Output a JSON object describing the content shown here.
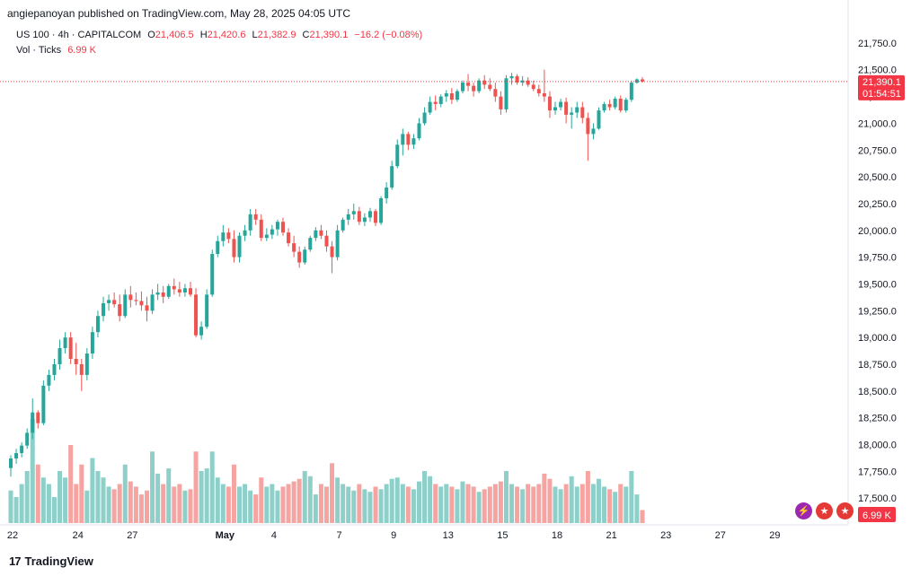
{
  "publisher_line": "angiepanoyan published on TradingView.com, May 28, 2025 04:05 UTC",
  "legend": {
    "symbol": "US 100 · 4h · CAPITALCOM",
    "open_label": "O",
    "open": "21,406.5",
    "high_label": "H",
    "high": "21,420.6",
    "low_label": "L",
    "low": "21,382.9",
    "close_label": "C",
    "close": "21,390.1",
    "change": "−16.2 (−0.08%)",
    "vol_label": "Vol · Ticks",
    "vol_value": "6.99 K"
  },
  "price_badge": {
    "price": "21,390.1",
    "countdown": "01:54:51"
  },
  "volume_badge": "6.99 K",
  "brand": {
    "logo": "17",
    "name": "TradingView"
  },
  "colors": {
    "up": "#26a69a",
    "down": "#ef5350",
    "vol_up": "#8ed0c9",
    "vol_down": "#f5a4a2",
    "last_price_line": "#f23645"
  },
  "icons": [
    "flash-icon",
    "us-flag-icon",
    "us-flag-icon"
  ],
  "chart_data": {
    "type": "candlestick",
    "symbol": "US 100",
    "timeframe": "4h",
    "ylim": [
      17250,
      21900
    ],
    "y_ticks": [
      "21,750.0",
      "21,500.0",
      "21,250.0",
      "21,000.0",
      "20,750.0",
      "20,500.0",
      "20,250.0",
      "20,000.0",
      "19,750.0",
      "19,500.0",
      "19,250.0",
      "19,000.0",
      "18,750.0",
      "18,500.0",
      "18,250.0",
      "18,000.0",
      "17,750.0",
      "17,500.0"
    ],
    "y_tick_values": [
      21750,
      21500,
      21250,
      21000,
      20750,
      20500,
      20250,
      20000,
      19750,
      19500,
      19250,
      19000,
      18750,
      18500,
      18250,
      18000,
      17750,
      17500
    ],
    "x_ticks": [
      {
        "label": "22",
        "bold": false
      },
      {
        "label": "24",
        "bold": false
      },
      {
        "label": "27",
        "bold": false
      },
      {
        "label": "May",
        "bold": true
      },
      {
        "label": "4",
        "bold": false
      },
      {
        "label": "7",
        "bold": false
      },
      {
        "label": "9",
        "bold": false
      },
      {
        "label": "13",
        "bold": false
      },
      {
        "label": "15",
        "bold": false
      },
      {
        "label": "18",
        "bold": false
      },
      {
        "label": "21",
        "bold": false
      },
      {
        "label": "23",
        "bold": false
      },
      {
        "label": "27",
        "bold": false
      },
      {
        "label": "29",
        "bold": false
      }
    ],
    "x_tick_bar_index": [
      0,
      12,
      22,
      39,
      48,
      60,
      70,
      80,
      90,
      100,
      110,
      120,
      130,
      140
    ],
    "last_price": 21390.1,
    "candles": [
      [
        17780,
        17900,
        17700,
        17870,
        0.25
      ],
      [
        17870,
        17960,
        17820,
        17920,
        0.2
      ],
      [
        17920,
        18020,
        17880,
        17990,
        0.3
      ],
      [
        17990,
        18150,
        17960,
        18110,
        0.4
      ],
      [
        18110,
        18430,
        18050,
        18300,
        0.8
      ],
      [
        18300,
        18320,
        18150,
        18200,
        0.45
      ],
      [
        18200,
        18600,
        18180,
        18550,
        0.35
      ],
      [
        18550,
        18700,
        18500,
        18650,
        0.3
      ],
      [
        18650,
        18800,
        18600,
        18750,
        0.2
      ],
      [
        18750,
        18980,
        18700,
        18900,
        0.4
      ],
      [
        18900,
        19050,
        18850,
        19000,
        0.35
      ],
      [
        19000,
        19050,
        18750,
        18800,
        0.6
      ],
      [
        18800,
        18950,
        18650,
        18750,
        0.3
      ],
      [
        18750,
        18800,
        18500,
        18650,
        0.45
      ],
      [
        18650,
        18900,
        18600,
        18850,
        0.25
      ],
      [
        18850,
        19100,
        18800,
        19050,
        0.5
      ],
      [
        19050,
        19250,
        19000,
        19200,
        0.4
      ],
      [
        19200,
        19380,
        19150,
        19320,
        0.35
      ],
      [
        19320,
        19400,
        19250,
        19350,
        0.28
      ],
      [
        19350,
        19420,
        19280,
        19310,
        0.26
      ],
      [
        19310,
        19400,
        19150,
        19200,
        0.3
      ],
      [
        19200,
        19450,
        19180,
        19400,
        0.45
      ],
      [
        19400,
        19480,
        19280,
        19350,
        0.32
      ],
      [
        19350,
        19420,
        19300,
        19340,
        0.28
      ],
      [
        19340,
        19430,
        19250,
        19300,
        0.22
      ],
      [
        19300,
        19380,
        19150,
        19250,
        0.25
      ],
      [
        19250,
        19450,
        19220,
        19400,
        0.55
      ],
      [
        19400,
        19500,
        19350,
        19420,
        0.38
      ],
      [
        19420,
        19480,
        19320,
        19380,
        0.3
      ],
      [
        19380,
        19500,
        19360,
        19480,
        0.42
      ],
      [
        19480,
        19550,
        19400,
        19450,
        0.28
      ],
      [
        19450,
        19520,
        19380,
        19420,
        0.3
      ],
      [
        19420,
        19500,
        19380,
        19460,
        0.25
      ],
      [
        19460,
        19520,
        19380,
        19400,
        0.26
      ],
      [
        19400,
        19460,
        19000,
        19020,
        0.55
      ],
      [
        19020,
        19150,
        18980,
        19100,
        0.4
      ],
      [
        19100,
        19450,
        19080,
        19400,
        0.42
      ],
      [
        19400,
        19820,
        19380,
        19780,
        0.55
      ],
      [
        19780,
        19950,
        19750,
        19900,
        0.35
      ],
      [
        19900,
        20050,
        19850,
        19980,
        0.3
      ],
      [
        19980,
        20020,
        19880,
        19920,
        0.28
      ],
      [
        19920,
        20000,
        19700,
        19750,
        0.45
      ],
      [
        19750,
        19980,
        19700,
        19950,
        0.28
      ],
      [
        19950,
        20050,
        19900,
        20000,
        0.3
      ],
      [
        20000,
        20200,
        19950,
        20150,
        0.25
      ],
      [
        20150,
        20200,
        20050,
        20100,
        0.22
      ],
      [
        20100,
        20150,
        19900,
        19930,
        0.35
      ],
      [
        19930,
        20020,
        19900,
        19960,
        0.28
      ],
      [
        19960,
        20050,
        19920,
        20010,
        0.3
      ],
      [
        20010,
        20100,
        19950,
        20080,
        0.25
      ],
      [
        20080,
        20120,
        19950,
        19980,
        0.28
      ],
      [
        19980,
        20020,
        19850,
        19880,
        0.3
      ],
      [
        19880,
        19950,
        19750,
        19800,
        0.32
      ],
      [
        19800,
        19850,
        19650,
        19700,
        0.34
      ],
      [
        19700,
        19850,
        19680,
        19820,
        0.4
      ],
      [
        19820,
        19950,
        19800,
        19930,
        0.36
      ],
      [
        19930,
        20030,
        19900,
        20000,
        0.22
      ],
      [
        20000,
        20050,
        19920,
        19950,
        0.3
      ],
      [
        19950,
        20000,
        19800,
        19850,
        0.28
      ],
      [
        19850,
        19900,
        19600,
        19750,
        0.46
      ],
      [
        19750,
        20050,
        19720,
        20000,
        0.35
      ],
      [
        20000,
        20120,
        19980,
        20100,
        0.3
      ],
      [
        20100,
        20200,
        20050,
        20150,
        0.28
      ],
      [
        20150,
        20250,
        20100,
        20180,
        0.25
      ],
      [
        20180,
        20220,
        20050,
        20080,
        0.3
      ],
      [
        20080,
        20160,
        20040,
        20120,
        0.26
      ],
      [
        20120,
        20210,
        20080,
        20180,
        0.24
      ],
      [
        20180,
        20200,
        20040,
        20070,
        0.28
      ],
      [
        20070,
        20320,
        20050,
        20300,
        0.26
      ],
      [
        20300,
        20450,
        20250,
        20400,
        0.3
      ],
      [
        20400,
        20650,
        20380,
        20600,
        0.34
      ],
      [
        20600,
        20850,
        20580,
        20800,
        0.35
      ],
      [
        20800,
        20950,
        20700,
        20900,
        0.3
      ],
      [
        20900,
        20920,
        20750,
        20800,
        0.28
      ],
      [
        20800,
        20900,
        20760,
        20860,
        0.26
      ],
      [
        20860,
        21050,
        20840,
        21000,
        0.32
      ],
      [
        21000,
        21150,
        20980,
        21100,
        0.4
      ],
      [
        21100,
        21250,
        21080,
        21200,
        0.36
      ],
      [
        21200,
        21260,
        21120,
        21180,
        0.3
      ],
      [
        21180,
        21270,
        21150,
        21250,
        0.28
      ],
      [
        21250,
        21310,
        21200,
        21280,
        0.3
      ],
      [
        21280,
        21330,
        21180,
        21220,
        0.28
      ],
      [
        21220,
        21320,
        21200,
        21300,
        0.26
      ],
      [
        21300,
        21400,
        21280,
        21380,
        0.32
      ],
      [
        21380,
        21460,
        21300,
        21350,
        0.3
      ],
      [
        21350,
        21380,
        21250,
        21300,
        0.28
      ],
      [
        21300,
        21420,
        21280,
        21400,
        0.24
      ],
      [
        21400,
        21450,
        21320,
        21360,
        0.26
      ],
      [
        21360,
        21420,
        21300,
        21320,
        0.28
      ],
      [
        21320,
        21380,
        21200,
        21250,
        0.3
      ],
      [
        21250,
        21300,
        21080,
        21130,
        0.32
      ],
      [
        21130,
        21450,
        21100,
        21420,
        0.4
      ],
      [
        21420,
        21470,
        21360,
        21440,
        0.3
      ],
      [
        21440,
        21460,
        21360,
        21380,
        0.28
      ],
      [
        21380,
        21440,
        21350,
        21400,
        0.26
      ],
      [
        21400,
        21430,
        21340,
        21360,
        0.3
      ],
      [
        21360,
        21400,
        21300,
        21320,
        0.28
      ],
      [
        21320,
        21360,
        21250,
        21280,
        0.3
      ],
      [
        21280,
        21500,
        21200,
        21250,
        0.38
      ],
      [
        21250,
        21300,
        21050,
        21120,
        0.34
      ],
      [
        21120,
        21200,
        21080,
        21150,
        0.28
      ],
      [
        21150,
        21230,
        21120,
        21200,
        0.26
      ],
      [
        21200,
        21240,
        21000,
        21080,
        0.3
      ],
      [
        21080,
        21150,
        20950,
        21100,
        0.36
      ],
      [
        21100,
        21200,
        21050,
        21150,
        0.28
      ],
      [
        21150,
        21200,
        21000,
        21050,
        0.3
      ],
      [
        21050,
        21100,
        20650,
        20900,
        0.4
      ],
      [
        20900,
        21000,
        20850,
        20950,
        0.3
      ],
      [
        20950,
        21150,
        20940,
        21120,
        0.34
      ],
      [
        21120,
        21200,
        21100,
        21180,
        0.28
      ],
      [
        21180,
        21220,
        21120,
        21150,
        0.26
      ],
      [
        21150,
        21250,
        21130,
        21230,
        0.24
      ],
      [
        21230,
        21260,
        21100,
        21120,
        0.3
      ],
      [
        21120,
        21240,
        21100,
        21220,
        0.28
      ],
      [
        21220,
        21400,
        21200,
        21380,
        0.4
      ],
      [
        21380,
        21420,
        21370,
        21410,
        0.22
      ],
      [
        21410,
        21430,
        21380,
        21390,
        0.1
      ]
    ]
  }
}
